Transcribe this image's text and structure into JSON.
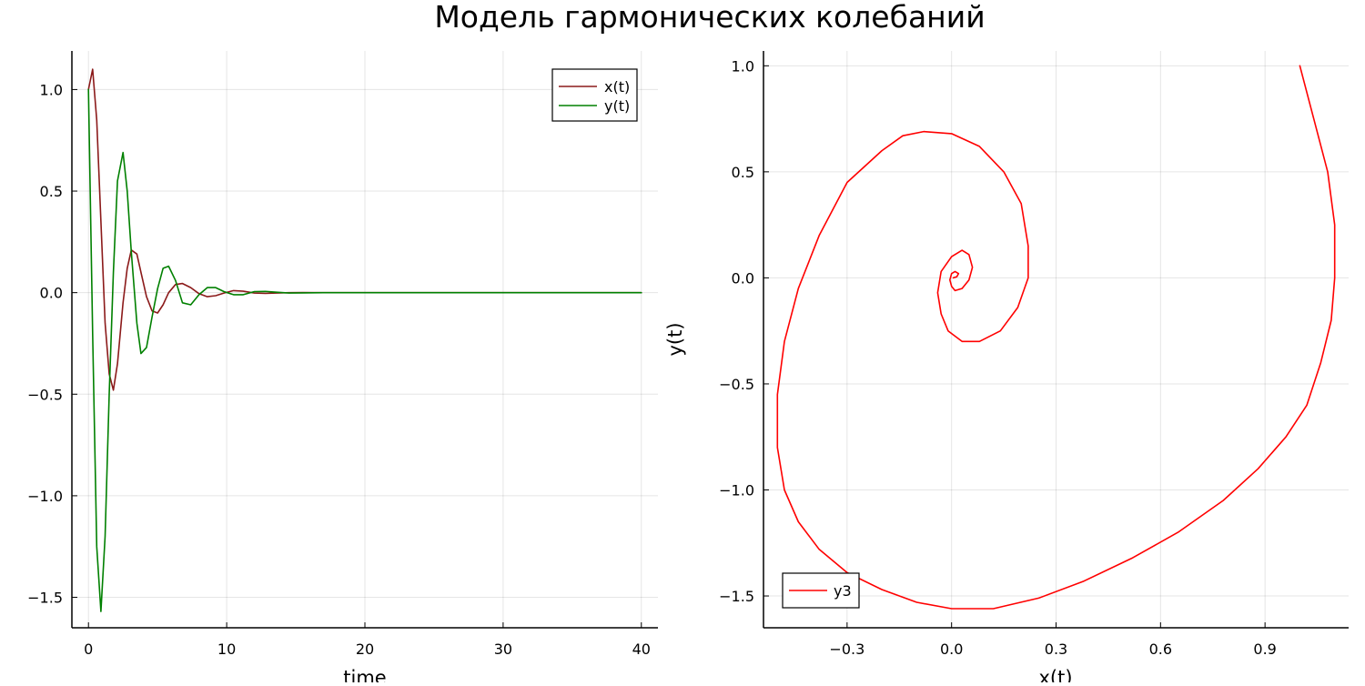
{
  "title": "Модель гармонических колебаний",
  "chart_data": [
    {
      "type": "line",
      "xlabel": "time",
      "ylabel": "",
      "xlim": [
        -1.2,
        41.2
      ],
      "ylim": [
        -1.65,
        1.19
      ],
      "xticks": [
        0,
        10,
        20,
        30,
        40
      ],
      "xtick_labels": [
        "0",
        "10",
        "20",
        "30",
        "40"
      ],
      "yticks": [
        1.0,
        0.5,
        0.0,
        -0.5,
        -1.0,
        -1.5
      ],
      "ytick_labels": [
        "1.0",
        "0.5",
        "0.0",
        "−0.5",
        "−1.0",
        "−1.5"
      ],
      "grid": true,
      "legend_position": "top-right",
      "x": [
        0,
        0.3,
        0.6,
        0.9,
        1.2,
        1.5,
        1.8,
        2.1,
        2.5,
        2.8,
        3.1,
        3.5,
        3.8,
        4.2,
        4.6,
        5.0,
        5.4,
        5.8,
        6.3,
        6.8,
        7.4,
        8.0,
        8.6,
        9.2,
        9.8,
        10.5,
        11.2,
        12.0,
        12.8,
        13.6,
        14.5,
        15.5,
        17,
        20,
        25,
        30,
        35,
        40
      ],
      "series": [
        {
          "name": "x(t)",
          "color": "#8b1a1a",
          "values": [
            1.0,
            1.1,
            0.85,
            0.35,
            -0.15,
            -0.4,
            -0.48,
            -0.35,
            -0.05,
            0.12,
            0.21,
            0.19,
            0.1,
            -0.02,
            -0.09,
            -0.1,
            -0.06,
            0.0,
            0.04,
            0.045,
            0.025,
            -0.005,
            -0.02,
            -0.015,
            -0.002,
            0.01,
            0.007,
            -0.002,
            -0.004,
            -0.002,
            0.0,
            0.0005,
            0.0,
            0.0,
            0.0,
            0.0,
            0.0,
            0.0
          ]
        },
        {
          "name": "y(t)",
          "color": "#008000",
          "values": [
            1.0,
            -0.2,
            -1.25,
            -1.57,
            -1.2,
            -0.5,
            0.1,
            0.55,
            0.69,
            0.5,
            0.2,
            -0.15,
            -0.3,
            -0.27,
            -0.12,
            0.02,
            0.12,
            0.13,
            0.06,
            -0.05,
            -0.06,
            -0.01,
            0.025,
            0.025,
            0.005,
            -0.01,
            -0.01,
            0.005,
            0.006,
            0.002,
            -0.002,
            -0.001,
            0.0,
            0.0,
            0.0,
            0.0,
            0.0,
            0.0
          ]
        }
      ]
    },
    {
      "type": "line",
      "xlabel": "x(t)",
      "ylabel": "y(t)",
      "xlim": [
        -0.54,
        1.14
      ],
      "ylim": [
        -1.65,
        1.07
      ],
      "xticks": [
        -0.3,
        0.0,
        0.3,
        0.6,
        0.9
      ],
      "xtick_labels": [
        "−0.3",
        "0.0",
        "0.3",
        "0.6",
        "0.9"
      ],
      "yticks": [
        1.0,
        0.5,
        0.0,
        -0.5,
        -1.0,
        -1.5
      ],
      "ytick_labels": [
        "1.0",
        "0.5",
        "0.0",
        "−0.5",
        "−1.0",
        "−1.5"
      ],
      "grid": true,
      "legend_position": "bottom-left",
      "series": [
        {
          "name": "y3",
          "color": "#ff0000",
          "x": [
            1.0,
            1.04,
            1.08,
            1.1,
            1.1,
            1.09,
            1.06,
            1.02,
            0.96,
            0.88,
            0.78,
            0.65,
            0.52,
            0.38,
            0.25,
            0.12,
            0.0,
            -0.1,
            -0.2,
            -0.3,
            -0.38,
            -0.44,
            -0.48,
            -0.5,
            -0.5,
            -0.48,
            -0.44,
            -0.38,
            -0.3,
            -0.2,
            -0.14,
            -0.08,
            0.0,
            0.08,
            0.15,
            0.2,
            0.22,
            0.22,
            0.19,
            0.14,
            0.08,
            0.03,
            -0.01,
            -0.03,
            -0.04,
            -0.03,
            0.0,
            0.03,
            0.05,
            0.06,
            0.05,
            0.03,
            0.01,
            0.0,
            -0.005,
            0.0,
            0.01,
            0.02,
            0.015,
            0.005
          ],
          "y": [
            1.0,
            0.75,
            0.5,
            0.25,
            0.0,
            -0.2,
            -0.4,
            -0.6,
            -0.75,
            -0.9,
            -1.05,
            -1.2,
            -1.32,
            -1.43,
            -1.51,
            -1.56,
            -1.56,
            -1.53,
            -1.47,
            -1.39,
            -1.28,
            -1.15,
            -1.0,
            -0.8,
            -0.55,
            -0.3,
            -0.05,
            0.2,
            0.45,
            0.6,
            0.67,
            0.69,
            0.68,
            0.62,
            0.5,
            0.35,
            0.15,
            0.0,
            -0.14,
            -0.25,
            -0.3,
            -0.3,
            -0.25,
            -0.17,
            -0.07,
            0.03,
            0.1,
            0.13,
            0.11,
            0.05,
            -0.01,
            -0.05,
            -0.06,
            -0.04,
            -0.01,
            0.02,
            0.03,
            0.02,
            0.005,
            0.0
          ]
        }
      ]
    }
  ]
}
